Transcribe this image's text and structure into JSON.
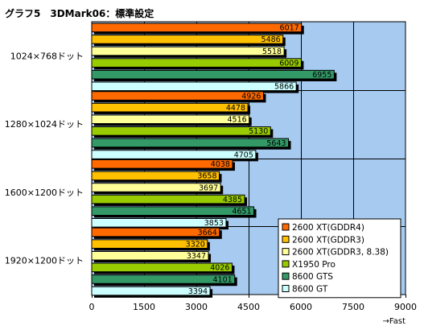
{
  "chart_data": {
    "type": "bar",
    "orientation": "horizontal",
    "title": "グラフ5　3DMark06：標準設定",
    "x_unit_label": "→Fast",
    "xlim": [
      0,
      9000
    ],
    "xticks": [
      "0",
      "1500",
      "3000",
      "4500",
      "6000",
      "7500",
      "9000"
    ],
    "grid": true,
    "legend_position": "bottom-right",
    "categories": [
      "1024×768ドット",
      "1280×1024ドット",
      "1600×1200ドット",
      "1920×1200ドット"
    ],
    "series": [
      {
        "name": "2600 XT(GDDR4)",
        "color": "#ff6a00",
        "values": [
          6017,
          4926,
          4038,
          3664
        ]
      },
      {
        "name": "2600 XT(GDDR3)",
        "color": "#ffc000",
        "values": [
          5486,
          4478,
          3658,
          3320
        ]
      },
      {
        "name": "2600 XT(GDDR3, 8.38)",
        "color": "#ffff99",
        "values": [
          5518,
          4516,
          3697,
          3347
        ]
      },
      {
        "name": "X1950 Pro",
        "color": "#99cc00",
        "values": [
          6009,
          5130,
          4385,
          4026
        ]
      },
      {
        "name": "8600 GTS",
        "color": "#339966",
        "values": [
          6955,
          5643,
          4651,
          4101
        ]
      },
      {
        "name": "8600 GT",
        "color": "#ccffff",
        "values": [
          5866,
          4705,
          3853,
          3394
        ]
      }
    ],
    "colors": {
      "plot_background": "#a6caf0",
      "bar_shadow": "#000000"
    }
  }
}
